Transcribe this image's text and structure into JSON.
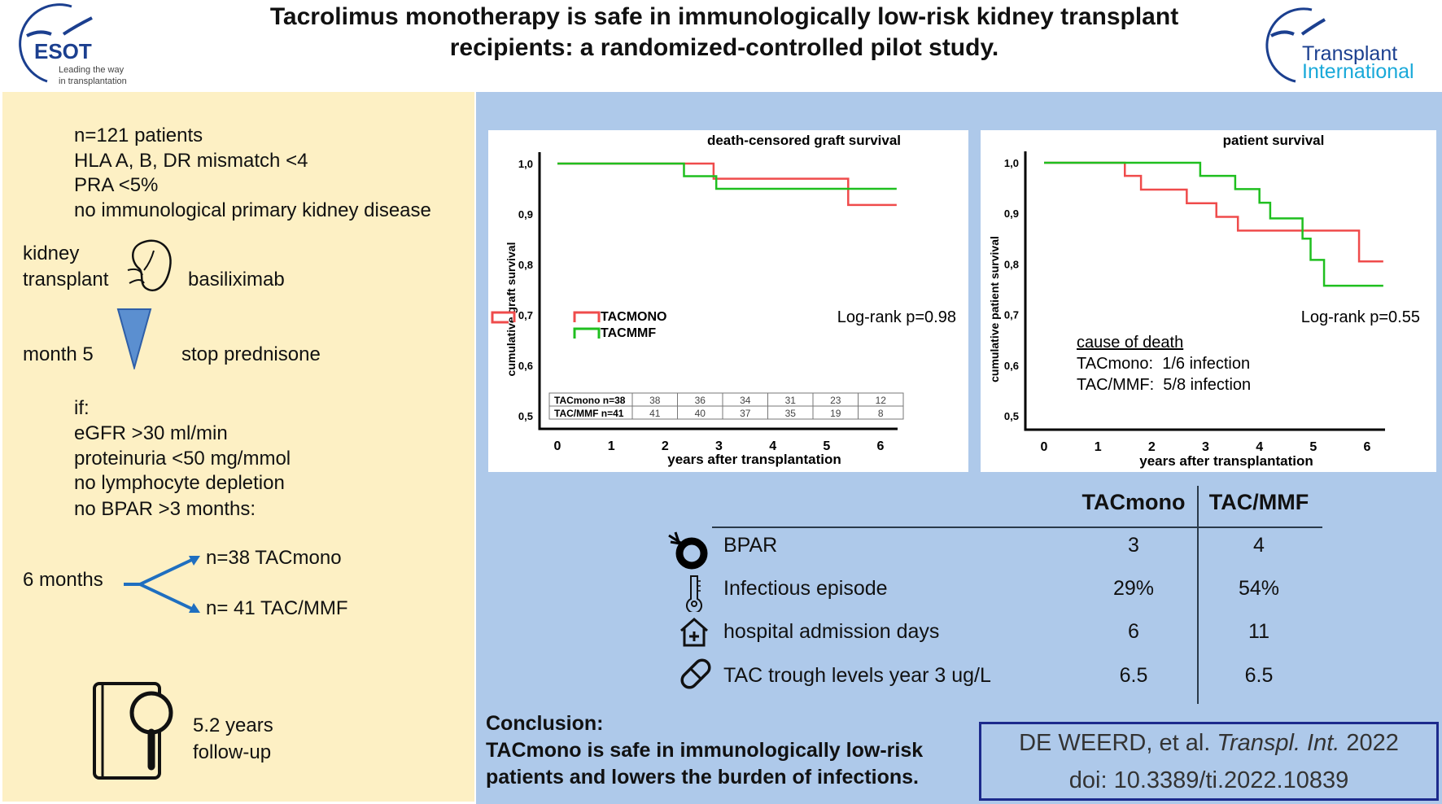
{
  "header": {
    "title_line1": "Tacrolimus monotherapy is safe in immunologically low-risk kidney transplant",
    "title_line2": "recipients: a randomized-controlled pilot study.",
    "esot_logo": {
      "name": "ESOT",
      "tagline1": "Leading the way",
      "tagline2": "in transplantation"
    },
    "ti_logo": {
      "line1": "Transplant",
      "line2": "International"
    }
  },
  "left": {
    "criteria": [
      "n=121 patients",
      "HLA A, B, DR mismatch <4",
      "PRA <5%",
      "no immunological primary kidney disease"
    ],
    "kidney_label1": "kidney",
    "kidney_label2": "transplant",
    "basiliximab": "basiliximab",
    "month5": "month 5",
    "stop_prednisone": "stop prednisone",
    "if_label": "if:",
    "conditions": [
      "eGFR >30 ml/min",
      "proteinuria <50 mg/mmol",
      "no lymphocyte depletion",
      "no BPAR >3 months:"
    ],
    "six_months": "6 months",
    "arm1": "n=38 TACmono",
    "arm2": "n= 41 TAC/MMF",
    "followup1": "5.2 years",
    "followup2": "follow-up"
  },
  "chart_data": [
    {
      "type": "line",
      "title": "death-censored graft survival",
      "xlabel": "years after transplantation",
      "ylabel": "cumulative graft survival",
      "xticks": [
        "0",
        "1",
        "2",
        "3",
        "4",
        "5",
        "6"
      ],
      "yticks": [
        "0,5",
        "0,6",
        "0,7",
        "0,8",
        "0,9",
        "1,0"
      ],
      "xlim": [
        0,
        6.3
      ],
      "ylim": [
        0.5,
        1.0
      ],
      "legend": {
        "placement": "left",
        "entries": [
          "TACMONO",
          "TACMMF"
        ]
      },
      "annotation": "Log-rank p=0.98",
      "series": [
        {
          "name": "TACMONO",
          "color": "#ef4b4b",
          "steps": [
            [
              0,
              1.0
            ],
            [
              2.9,
              0.97
            ],
            [
              5.4,
              0.918
            ],
            [
              6.3,
              0.918
            ]
          ]
        },
        {
          "name": "TACMMF",
          "color": "#1fbf1f",
          "steps": [
            [
              0,
              1.0
            ],
            [
              2.35,
              0.975
            ],
            [
              2.95,
              0.95
            ],
            [
              6.3,
              0.95
            ]
          ]
        }
      ],
      "risk_table": {
        "rows": [
          {
            "label": "TACmono n=38",
            "values": [
              "38",
              "36",
              "34",
              "31",
              "23",
              "12"
            ]
          },
          {
            "label": "TAC/MMF n=41",
            "values": [
              "41",
              "40",
              "37",
              "35",
              "19",
              "8"
            ]
          }
        ]
      }
    },
    {
      "type": "line",
      "title": "patient survival",
      "xlabel": "years after transplantation",
      "ylabel": "cumulative patient survival",
      "xticks": [
        "0",
        "1",
        "2",
        "3",
        "4",
        "5",
        "6"
      ],
      "yticks": [
        "0,5",
        "0,6",
        "0,7",
        "0,8",
        "0,9",
        "1,0"
      ],
      "xlim": [
        0,
        6.3
      ],
      "ylim": [
        0.5,
        1.0
      ],
      "annotation": "Log-rank p=0.55",
      "cause_title": "cause of death",
      "cause_lines": [
        "TACmono:  1/6 infection",
        "TAC/MMF:  5/8 infection"
      ],
      "series": [
        {
          "name": "TACmono",
          "color": "#ef4b4b",
          "steps": [
            [
              0,
              1.0
            ],
            [
              1.5,
              0.974
            ],
            [
              1.8,
              0.947
            ],
            [
              2.65,
              0.92
            ],
            [
              3.2,
              0.893
            ],
            [
              3.6,
              0.866
            ],
            [
              5.85,
              0.805
            ],
            [
              6.3,
              0.805
            ]
          ]
        },
        {
          "name": "TAC/MMF",
          "color": "#1fbf1f",
          "steps": [
            [
              0,
              1.0
            ],
            [
              2.9,
              0.974
            ],
            [
              3.55,
              0.948
            ],
            [
              4.0,
              0.921
            ],
            [
              4.2,
              0.89
            ],
            [
              4.8,
              0.85
            ],
            [
              4.95,
              0.808
            ],
            [
              5.2,
              0.757
            ],
            [
              6.3,
              0.757
            ]
          ]
        }
      ]
    }
  ],
  "outcomes": {
    "headers": [
      "TACmono",
      "TAC/MMF"
    ],
    "rows": [
      {
        "icon": "kidney-rejection-icon",
        "label": "BPAR",
        "values": [
          "3",
          "4"
        ]
      },
      {
        "icon": "thermometer-icon",
        "label": "Infectious episode",
        "values": [
          "29%",
          "54%"
        ]
      },
      {
        "icon": "hospital-icon",
        "label": "hospital admission days",
        "values": [
          "6",
          "11"
        ]
      },
      {
        "icon": "pill-icon",
        "label": "TAC trough levels year 3 ug/L",
        "values": [
          "6.5",
          "6.5"
        ]
      }
    ]
  },
  "conclusion": {
    "title": "Conclusion:",
    "line1": "TACmono is safe in immunologically low-risk",
    "line2": "patients and lowers the burden of infections."
  },
  "citation": {
    "authors": "DE WEERD, et al. ",
    "journal": "Transpl. Int.",
    "year": " 2022",
    "doi": "doi: 10.3389/ti.2022.10839"
  },
  "colors": {
    "left_bg": "#fdf0c4",
    "right_bg": "#aec9ea",
    "tacmono": "#ef4b4b",
    "tacmmf": "#1fbf1f",
    "citation_border": "#1c2a8c"
  }
}
